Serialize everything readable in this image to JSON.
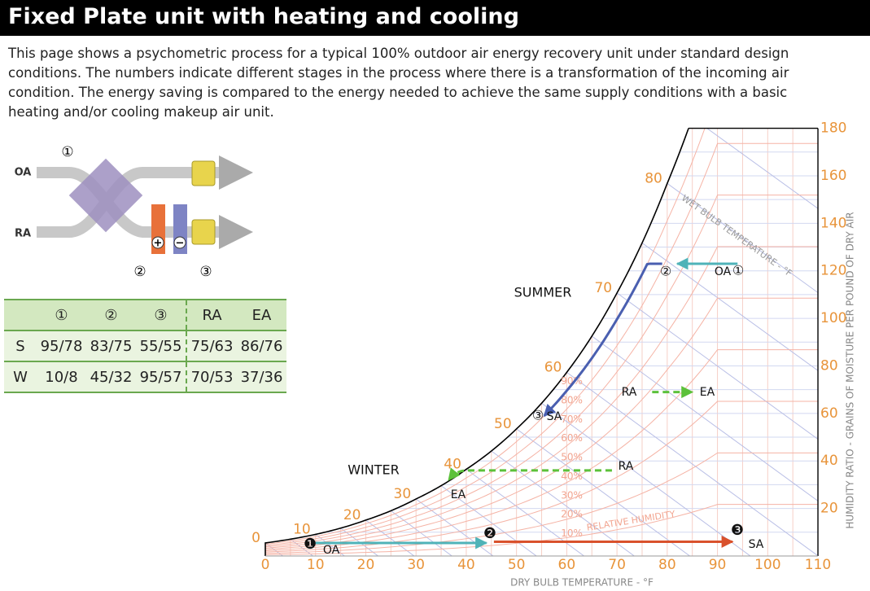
{
  "header": {
    "title": "Fixed Plate unit with heating and cooling"
  },
  "intro": {
    "lines": [
      "This page shows a psychometric process for a typical 100% outdoor air energy recovery unit under standard design",
      "conditions. The numbers indicate different stages in the process where there is a transformation of the incoming air",
      "condition. The energy saving is compared to the energy needed to achieve the same supply conditions with a basic",
      "heating and/or cooling makeup air unit."
    ]
  },
  "schematic": {
    "oa": "OA",
    "ra": "RA",
    "stage1": "①",
    "stage2": "②",
    "stage3": "③",
    "heat": "+",
    "cool": "−"
  },
  "table": {
    "header": [
      "①",
      "②",
      "③",
      "RA",
      "EA"
    ],
    "rows": [
      {
        "label": "S",
        "cells": [
          "95/78",
          "83/75",
          "55/55",
          "75/63",
          "86/76"
        ]
      },
      {
        "label": "W",
        "cells": [
          "10/8",
          "45/32",
          "95/57",
          "70/53",
          "37/36"
        ]
      }
    ]
  },
  "psychro": {
    "dry_bulb_ticks": [
      0,
      10,
      20,
      30,
      40,
      50,
      60,
      70,
      80,
      90,
      100,
      110
    ],
    "humidity_ticks": [
      20,
      40,
      60,
      80,
      100,
      120,
      140,
      160,
      180
    ],
    "wet_bulb_labels": [
      0,
      10,
      20,
      30,
      40,
      50,
      60,
      70,
      80
    ],
    "rh_labels": [
      "10%",
      "20%",
      "30%",
      "40%",
      "50%",
      "60%",
      "70%",
      "80%",
      "90%"
    ],
    "rh_title": "RELATIVE HUMIDITY",
    "wet_bulb_title": "WET BULB TEMPERATURE - °F",
    "x_title": "DRY BULB TEMPERATURE - °F",
    "y_title": "HUMIDITY RATIO - GRAINS OF MOISTURE PER POUND OF DRY AIR",
    "summer": "SUMMER",
    "winter": "WINTER",
    "points": {
      "summer_oa": "OA",
      "summer_1": "①",
      "summer_2": "②",
      "summer_3": "③",
      "summer_sa": "SA",
      "summer_ra": "RA",
      "summer_ea": "EA",
      "winter_1": "❶",
      "winter_oa": "OA",
      "winter_2": "❷",
      "winter_3": "❸",
      "winter_sa": "SA",
      "winter_ra": "RA",
      "winter_ea": "EA"
    }
  }
}
